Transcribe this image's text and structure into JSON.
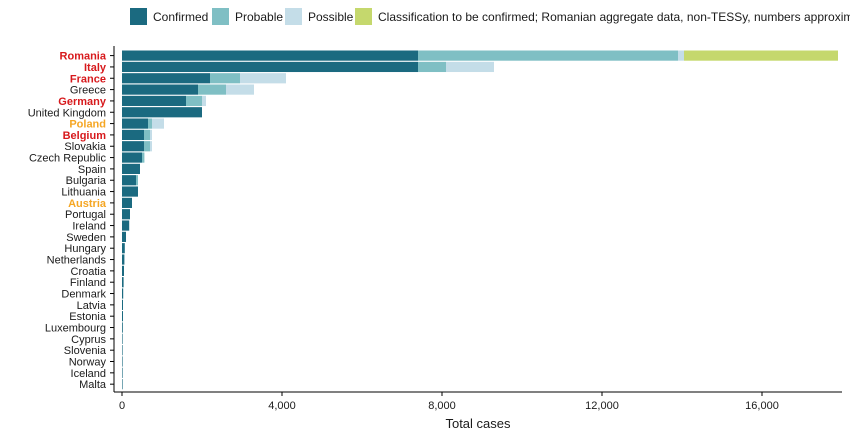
{
  "chart_data": {
    "type": "bar",
    "orientation": "horizontal",
    "stacked": true,
    "title": "",
    "xlabel": "Total cases",
    "ylabel": "",
    "xlim": [
      0,
      18000
    ],
    "xticks": [
      0,
      4000,
      8000,
      12000,
      16000
    ],
    "xtick_labels": [
      "0",
      "4,000",
      "8,000",
      "12,000",
      "16,000"
    ],
    "grid": false,
    "legend_position": "top",
    "categories": [
      "Romania",
      "Italy",
      "France",
      "Greece",
      "Germany",
      "United Kingdom",
      "Poland",
      "Belgium",
      "Slovakia",
      "Czech Republic",
      "Spain",
      "Bulgaria",
      "Lithuania",
      "Austria",
      "Portugal",
      "Ireland",
      "Sweden",
      "Hungary",
      "Netherlands",
      "Croatia",
      "Finland",
      "Denmark",
      "Latvia",
      "Estonia",
      "Luxembourg",
      "Cyprus",
      "Slovenia",
      "Norway",
      "Iceland",
      "Malta"
    ],
    "label_colors": {
      "Romania": "#d7191c",
      "Italy": "#d7191c",
      "France": "#d7191c",
      "Germany": "#d7191c",
      "Belgium": "#d7191c",
      "Poland": "#f5a623",
      "Austria": "#f5a623"
    },
    "default_label_color": "#1a1a1a",
    "series": [
      {
        "name": "Confirmed",
        "color": "#1b6a80",
        "values": [
          7400,
          7400,
          2200,
          1900,
          1600,
          2000,
          650,
          550,
          550,
          500,
          450,
          350,
          400,
          250,
          200,
          180,
          100,
          70,
          60,
          50,
          40,
          30,
          25,
          25,
          20,
          15,
          15,
          10,
          5,
          3
        ]
      },
      {
        "name": "Probable",
        "color": "#7fbfc4",
        "values": [
          6500,
          700,
          750,
          700,
          400,
          0,
          100,
          150,
          150,
          60,
          0,
          50,
          0,
          0,
          0,
          0,
          0,
          0,
          0,
          0,
          0,
          0,
          0,
          0,
          0,
          0,
          0,
          0,
          0,
          0
        ]
      },
      {
        "name": "Possible",
        "color": "#c4dde8",
        "values": [
          150,
          1200,
          1150,
          700,
          100,
          0,
          300,
          50,
          50,
          0,
          0,
          0,
          0,
          0,
          0,
          0,
          0,
          0,
          0,
          0,
          0,
          0,
          0,
          0,
          0,
          0,
          0,
          0,
          0,
          0
        ]
      },
      {
        "name": "Classification to be confirmed; Romanian aggregate data, non-TESSy, numbers approximate",
        "color": "#c5d86d",
        "values": [
          3850,
          0,
          0,
          0,
          0,
          0,
          0,
          0,
          0,
          0,
          0,
          0,
          0,
          0,
          0,
          0,
          0,
          0,
          0,
          0,
          0,
          0,
          0,
          0,
          0,
          0,
          0,
          0,
          0,
          0
        ]
      }
    ]
  }
}
